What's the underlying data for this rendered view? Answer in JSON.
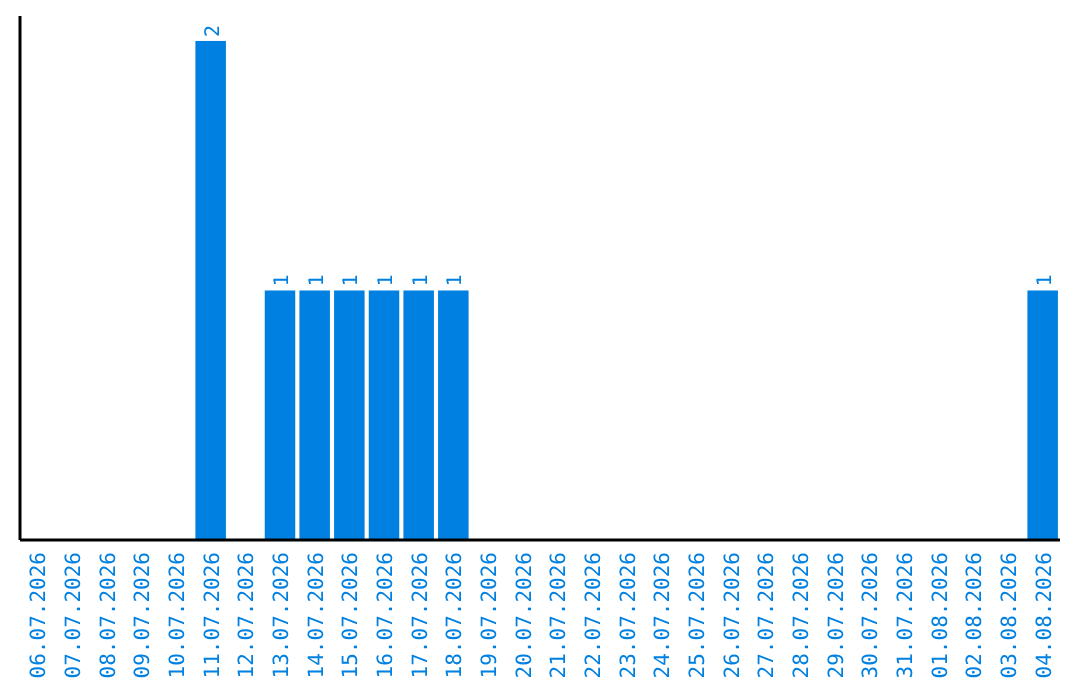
{
  "chart_data": {
    "type": "bar",
    "categories": [
      "06.07.2026",
      "07.07.2026",
      "08.07.2026",
      "09.07.2026",
      "10.07.2026",
      "11.07.2026",
      "12.07.2026",
      "13.07.2026",
      "14.07.2026",
      "15.07.2026",
      "16.07.2026",
      "17.07.2026",
      "18.07.2026",
      "19.07.2026",
      "20.07.2026",
      "21.07.2026",
      "22.07.2026",
      "23.07.2026",
      "24.07.2026",
      "25.07.2026",
      "26.07.2026",
      "27.07.2026",
      "28.07.2026",
      "29.07.2026",
      "30.07.2026",
      "31.07.2026",
      "01.08.2026",
      "02.08.2026",
      "03.08.2026",
      "04.08.2026"
    ],
    "values": [
      0,
      0,
      0,
      0,
      0,
      2,
      0,
      1,
      1,
      1,
      1,
      1,
      1,
      0,
      0,
      0,
      0,
      0,
      0,
      0,
      0,
      0,
      0,
      0,
      0,
      0,
      0,
      0,
      0,
      1
    ],
    "value_labels": [
      null,
      null,
      null,
      null,
      null,
      "2",
      null,
      "1",
      "1",
      "1",
      "1",
      "1",
      "1",
      null,
      null,
      null,
      null,
      null,
      null,
      null,
      null,
      null,
      null,
      null,
      null,
      null,
      null,
      null,
      null,
      "1"
    ],
    "color": "#0080e0",
    "ylim": [
      0,
      2.1
    ],
    "tick_labels": "x"
  }
}
